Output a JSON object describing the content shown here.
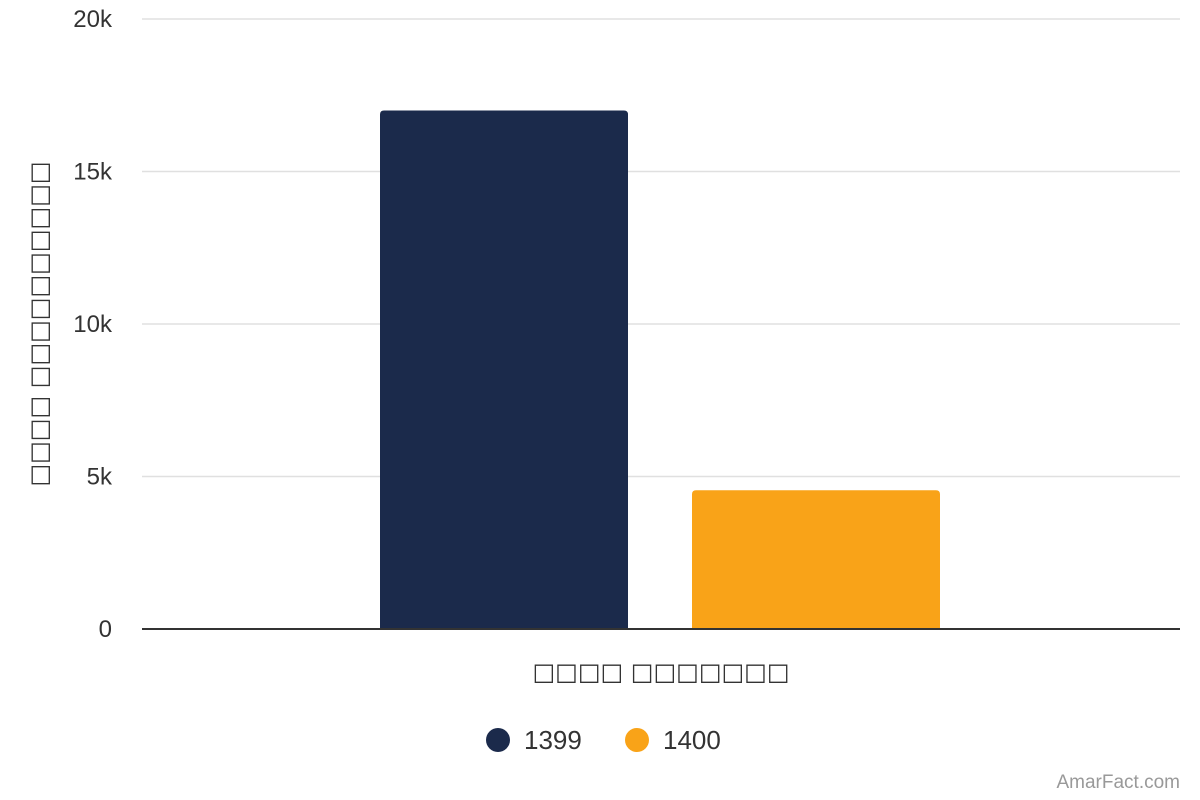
{
  "chart_data": {
    "type": "bar",
    "categories": [
      "□□□□ □□□□□□□"
    ],
    "series": [
      {
        "name": "1399",
        "values": [
          17000
        ],
        "color": "#1b2a4b"
      },
      {
        "name": "1400",
        "values": [
          4550
        ],
        "color": "#f9a318"
      }
    ],
    "xlabel": "□□□□ □□□□□□□",
    "ylabel": "□□□□ □□□□□□□□□□",
    "ylim": [
      0,
      20000
    ],
    "yticks": [
      {
        "value": 0,
        "label": "0"
      },
      {
        "value": 5000,
        "label": "5k"
      },
      {
        "value": 10000,
        "label": "10k"
      },
      {
        "value": 15000,
        "label": "15k"
      },
      {
        "value": 20000,
        "label": "20k"
      }
    ],
    "grid": true,
    "legend_position": "bottom-center"
  },
  "credit": "AmarFact.com"
}
